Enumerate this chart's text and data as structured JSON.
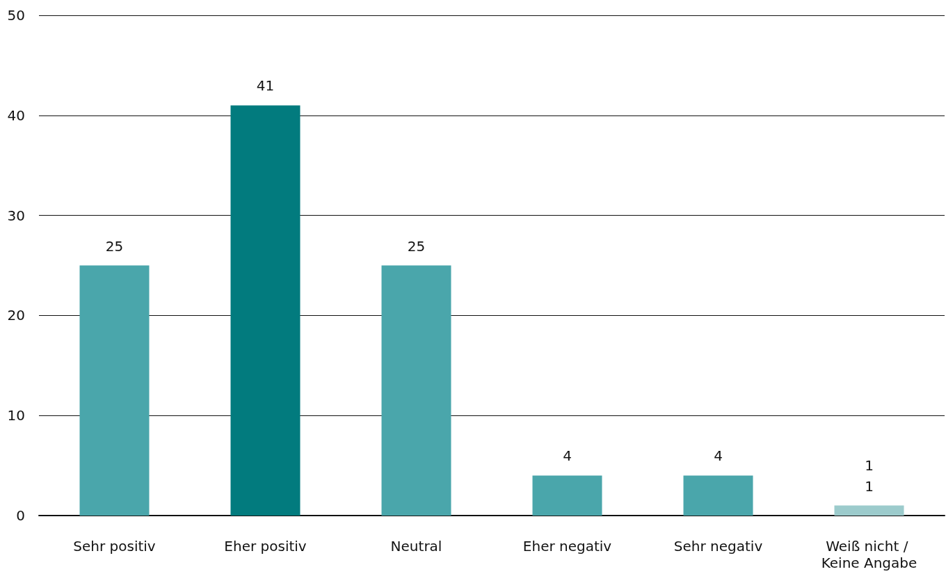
{
  "chart_data": {
    "type": "bar",
    "categories": [
      "Sehr positiv",
      "Eher positiv",
      "Neutral",
      "Eher negativ",
      "Sehr negativ",
      "Weiß nicht / Keine Angabe"
    ],
    "values": [
      25,
      41,
      25,
      4,
      4,
      1
    ],
    "colors": [
      "#4aa6ab",
      "#027b7e",
      "#4aa6ab",
      "#4aa6ab",
      "#4aa6ab",
      "#9ccbcc"
    ],
    "ylim": [
      0,
      50
    ],
    "yticks": [
      0,
      10,
      20,
      30,
      40,
      50
    ],
    "grid": "y",
    "data_labels": true,
    "annotations": [
      "1"
    ]
  }
}
